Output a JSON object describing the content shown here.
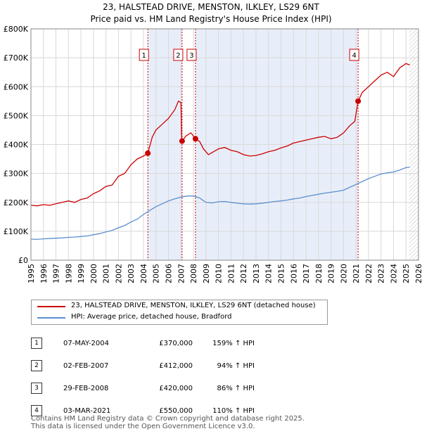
{
  "chart_data": {
    "type": "line",
    "title": "23, HALSTEAD DRIVE, MENSTON, ILKLEY, LS29 6NT",
    "subtitle": "Price paid vs. HM Land Registry's House Price Index (HPI)",
    "xlim": [
      1995,
      2026
    ],
    "ylim": [
      0,
      800000
    ],
    "x_ticks": [
      "1995",
      "1996",
      "1997",
      "1998",
      "1999",
      "2000",
      "2001",
      "2002",
      "2003",
      "2004",
      "2005",
      "2006",
      "2007",
      "2008",
      "2009",
      "2010",
      "2011",
      "2012",
      "2013",
      "2014",
      "2015",
      "2016",
      "2017",
      "2018",
      "2019",
      "2020",
      "2021",
      "2022",
      "2023",
      "2024",
      "2025",
      "2026"
    ],
    "y_ticks": [
      {
        "value": 0,
        "label": "£0"
      },
      {
        "value": 100000,
        "label": "£100K"
      },
      {
        "value": 200000,
        "label": "£200K"
      },
      {
        "value": 300000,
        "label": "£300K"
      },
      {
        "value": 400000,
        "label": "£400K"
      },
      {
        "value": 500000,
        "label": "£500K"
      },
      {
        "value": 600000,
        "label": "£600K"
      },
      {
        "value": 700000,
        "label": "£700K"
      },
      {
        "value": 800000,
        "label": "£800K"
      }
    ],
    "shaded_periods": [
      [
        2004.35,
        2007.09
      ],
      [
        2008.16,
        2021.17
      ]
    ],
    "future_hatch_from": 2025.25,
    "series": [
      {
        "name": "23, HALSTEAD DRIVE, MENSTON, ILKLEY, LS29 6NT (detached house)",
        "color": "#cc0000",
        "x": [
          1995,
          1995.5,
          1996,
          1996.5,
          1997,
          1997.5,
          1998,
          1998.5,
          1999,
          1999.5,
          2000,
          2000.5,
          2001,
          2001.5,
          2002,
          2002.5,
          2003,
          2003.5,
          2004,
          2004.35,
          2004.7,
          2005,
          2005.5,
          2006,
          2006.5,
          2006.8,
          2007.0,
          2007.05,
          2007.09,
          2007.4,
          2007.8,
          2008.16,
          2008.5,
          2008.8,
          2009.2,
          2009.6,
          2010,
          2010.5,
          2011,
          2011.5,
          2012,
          2012.5,
          2013,
          2013.5,
          2014,
          2014.5,
          2015,
          2015.5,
          2016,
          2016.5,
          2017,
          2017.5,
          2018,
          2018.5,
          2019,
          2019.5,
          2020,
          2020.5,
          2020.9,
          2021.17,
          2021.5,
          2022,
          2022.5,
          2023,
          2023.5,
          2024,
          2024.5,
          2025,
          2025.3
        ],
        "y": [
          190000,
          188000,
          192000,
          190000,
          195000,
          200000,
          205000,
          200000,
          210000,
          215000,
          230000,
          240000,
          255000,
          260000,
          290000,
          300000,
          330000,
          350000,
          360000,
          370000,
          425000,
          450000,
          470000,
          490000,
          520000,
          550000,
          545000,
          430000,
          412000,
          430000,
          440000,
          420000,
          410000,
          385000,
          365000,
          375000,
          385000,
          390000,
          380000,
          375000,
          365000,
          360000,
          362000,
          368000,
          375000,
          380000,
          388000,
          395000,
          405000,
          410000,
          415000,
          420000,
          425000,
          428000,
          420000,
          425000,
          440000,
          465000,
          480000,
          550000,
          580000,
          600000,
          620000,
          640000,
          650000,
          635000,
          665000,
          680000,
          675000
        ]
      },
      {
        "name": "HPI: Average price, detached house, Bradford",
        "color": "#5b8fd0",
        "x": [
          1995,
          1995.5,
          1996,
          1996.5,
          1997,
          1997.5,
          1998,
          1998.5,
          1999,
          1999.5,
          2000,
          2000.5,
          2001,
          2001.5,
          2002,
          2002.5,
          2003,
          2003.5,
          2004,
          2004.5,
          2005,
          2005.5,
          2006,
          2006.5,
          2007,
          2007.5,
          2008,
          2008.5,
          2009,
          2009.5,
          2010,
          2010.5,
          2011,
          2011.5,
          2012,
          2012.5,
          2013,
          2013.5,
          2014,
          2014.5,
          2015,
          2015.5,
          2016,
          2016.5,
          2017,
          2017.5,
          2018,
          2018.5,
          2019,
          2019.5,
          2020,
          2020.5,
          2021,
          2021.5,
          2022,
          2022.5,
          2023,
          2023.5,
          2024,
          2024.5,
          2025,
          2025.3
        ],
        "y": [
          73000,
          72000,
          74000,
          75000,
          76000,
          77000,
          79000,
          80000,
          82000,
          84000,
          88000,
          92000,
          98000,
          103000,
          112000,
          120000,
          132000,
          142000,
          158000,
          172000,
          185000,
          195000,
          205000,
          212000,
          218000,
          222000,
          222000,
          215000,
          200000,
          198000,
          202000,
          203000,
          200000,
          197000,
          195000,
          194000,
          195000,
          197000,
          200000,
          203000,
          205000,
          208000,
          212000,
          215000,
          220000,
          224000,
          228000,
          232000,
          235000,
          238000,
          242000,
          252000,
          262000,
          272000,
          282000,
          290000,
          298000,
          302000,
          305000,
          312000,
          320000,
          322000
        ]
      }
    ],
    "sales": [
      {
        "marker": "1",
        "x": 2004.35,
        "y": 370000
      },
      {
        "marker": "2",
        "x": 2007.09,
        "y": 412000
      },
      {
        "marker": "3",
        "x": 2008.16,
        "y": 420000
      },
      {
        "marker": "4",
        "x": 2021.17,
        "y": 550000
      }
    ]
  },
  "legend": {
    "property": "23, HALSTEAD DRIVE, MENSTON, ILKLEY, LS29 6NT (detached house)",
    "hpi": "HPI: Average price, detached house, Bradford"
  },
  "transactions": [
    {
      "num": "1",
      "date": "07-MAY-2004",
      "price": "£370,000",
      "hpi": "159% ↑ HPI"
    },
    {
      "num": "2",
      "date": "02-FEB-2007",
      "price": "£412,000",
      "hpi": "94% ↑ HPI"
    },
    {
      "num": "3",
      "date": "29-FEB-2008",
      "price": "£420,000",
      "hpi": "86% ↑ HPI"
    },
    {
      "num": "4",
      "date": "03-MAR-2021",
      "price": "£550,000",
      "hpi": "110% ↑ HPI"
    }
  ],
  "footer": {
    "line1": "Contains HM Land Registry data © Crown copyright and database right 2025.",
    "line2": "This data is licensed under the Open Government Licence v3.0."
  }
}
